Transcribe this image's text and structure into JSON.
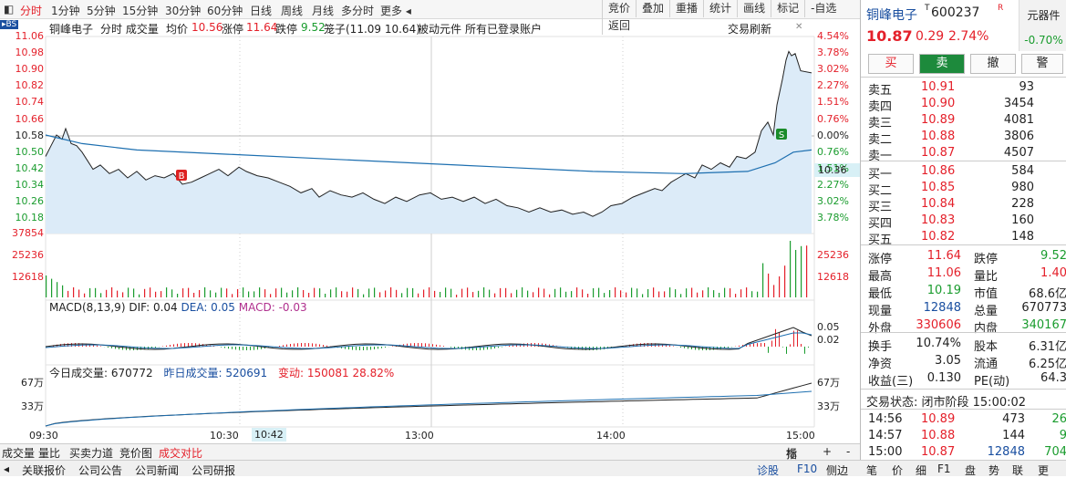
{
  "top_tabs": [
    "分时",
    "1分钟",
    "5分钟",
    "15分钟",
    "30分钟",
    "60分钟",
    "日线",
    "周线",
    "月线",
    "多分时",
    "更多"
  ],
  "top_tools": [
    "竞价",
    "叠加",
    "重播",
    "统计",
    "画线",
    "标记",
    "-自选",
    "返回"
  ],
  "info": {
    "name": "铜峰电子",
    "chart_type": "分时 成交量",
    "avg_label": "均价",
    "avg_value": "10.56",
    "limit_up_label": "涨停",
    "limit_up_value": "11.64",
    "limit_down_label": "跌停",
    "limit_down_value": "9.52",
    "cage_label": "笼子(11.09 10.64)",
    "passive": "被动元件",
    "accounts": "所有已登录账户",
    "refresh": "交易刷新"
  },
  "price_axis": [
    "11.06",
    "10.98",
    "10.90",
    "10.82",
    "10.74",
    "10.66",
    "10.58",
    "10.50",
    "10.42",
    "10.34",
    "10.26",
    "10.18"
  ],
  "pct_axis": [
    "4.54%",
    "3.78%",
    "3.02%",
    "2.27%",
    "1.51%",
    "0.76%",
    "0.00%",
    "0.76%",
    "1.51%",
    "2.27%",
    "3.02%",
    "3.78%"
  ],
  "current_marker": "10.36",
  "vol_axis": [
    "37854",
    "25236",
    "12618"
  ],
  "macd": {
    "label": "MACD(8,13,9)",
    "dif": "DIF: 0.04",
    "dea": "DEA: 0.05",
    "macd": "MACD: -0.03",
    "r1": "0.05",
    "r2": "0.02"
  },
  "cumvol": {
    "today": "今日成交量: 670772",
    "yesterday": "昨日成交量: 520691",
    "change": "变动: 150081 28.82%",
    "l1": "67万",
    "l2": "33万"
  },
  "time_axis": [
    "09:30",
    "10:30",
    "10:42",
    "13:00",
    "14:00",
    "15:00"
  ],
  "bottom_tabs": [
    "成交量",
    "量比",
    "买卖力道",
    "竞价图",
    "成交对比"
  ],
  "bottom_right": [
    "指",
    "+",
    "-"
  ],
  "footer": {
    "items": [
      "关联报价",
      "公司公告",
      "公司新闻",
      "公司研报"
    ],
    "right": [
      "诊股",
      "F10",
      "侧边"
    ],
    "tabs": [
      "笔",
      "价",
      "细",
      "F1",
      "盘",
      "势",
      "联",
      "更"
    ]
  },
  "panel": {
    "name": "铜峰电子",
    "code": "600237",
    "sector": "元器件",
    "sector_chg": "-0.70%",
    "price": "10.87",
    "chg": "0.29",
    "pct": "2.74%",
    "buttons": [
      "买",
      "卖",
      "撤",
      "警"
    ],
    "asks": [
      [
        "卖五",
        "10.91",
        "93"
      ],
      [
        "卖四",
        "10.90",
        "3454"
      ],
      [
        "卖三",
        "10.89",
        "4081"
      ],
      [
        "卖二",
        "10.88",
        "3806"
      ],
      [
        "卖一",
        "10.87",
        "4507"
      ]
    ],
    "bids": [
      [
        "买一",
        "10.86",
        "584"
      ],
      [
        "买二",
        "10.85",
        "980"
      ],
      [
        "买三",
        "10.84",
        "228"
      ],
      [
        "买四",
        "10.83",
        "160"
      ],
      [
        "买五",
        "10.82",
        "148"
      ]
    ],
    "stats": [
      [
        "涨停",
        "11.64",
        "跌停",
        "9.52"
      ],
      [
        "最高",
        "11.06",
        "量比",
        "1.40"
      ],
      [
        "最低",
        "10.19",
        "市值",
        "68.6亿"
      ],
      [
        "现量",
        "12848",
        "总量",
        "670773"
      ],
      [
        "外盘",
        "330606",
        "内盘",
        "340167"
      ]
    ],
    "stats2": [
      [
        "换手",
        "10.74%",
        "股本",
        "6.31亿"
      ],
      [
        "净资",
        "3.05",
        "流通",
        "6.25亿"
      ],
      [
        "收益(三)",
        "0.130",
        "PE(动)",
        "64.3"
      ]
    ],
    "status": "交易状态: 闭市阶段 15:00:02",
    "ticks": [
      [
        "14:56",
        "10.89",
        "473",
        "26"
      ],
      [
        "14:57",
        "10.88",
        "144",
        "9"
      ],
      [
        "15:00",
        "10.87",
        "12848",
        "704"
      ]
    ]
  }
}
